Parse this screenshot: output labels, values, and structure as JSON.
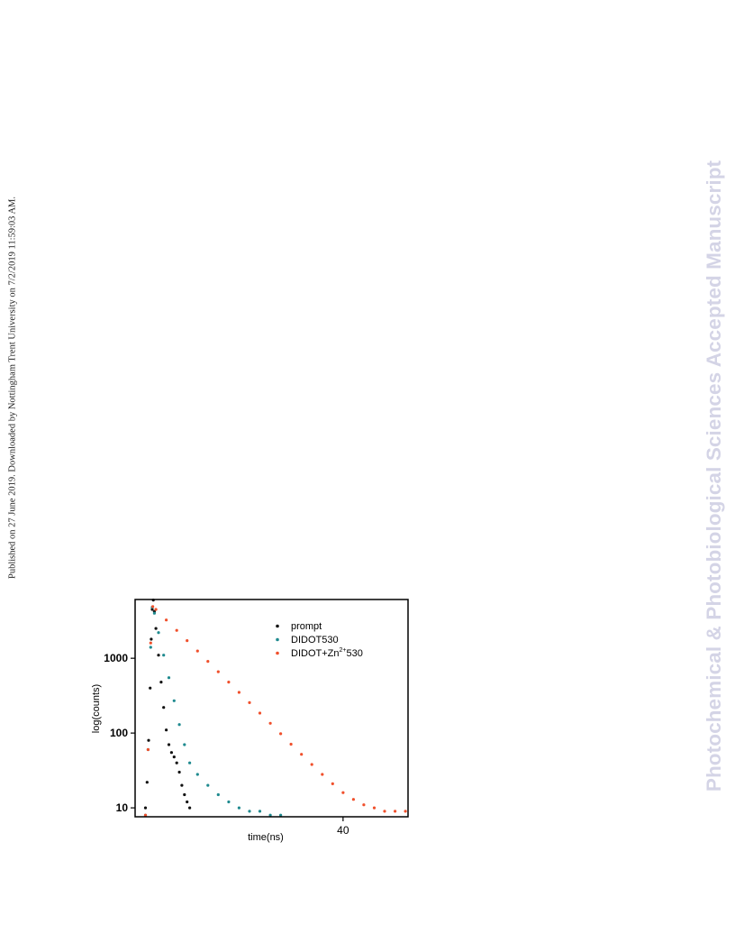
{
  "side_note": "Published on 27 June 2019. Downloaded by Nottingham Trent University on 7/2/2019 11:59:03 AM.",
  "watermark": {
    "text": "Photochemical & Photobiological Sciences Accepted Manuscript",
    "color": "#d4d4e6"
  },
  "chart_data": {
    "type": "scatter",
    "xlabel": "time(ns)",
    "ylabel": "log(counts)",
    "y_scale": "log",
    "xlim": [
      0,
      52.5
    ],
    "ylim": [
      7.6,
      6100
    ],
    "x_ticks": [
      {
        "value": 40,
        "label": "40"
      }
    ],
    "y_ticks": [
      {
        "value": 1000,
        "label": "1000"
      },
      {
        "value": 100,
        "label": "100"
      },
      {
        "value": 10,
        "label": "10"
      }
    ],
    "legend": {
      "position": "top-right",
      "entries": [
        {
          "label": "prompt",
          "color": "#111111"
        },
        {
          "label": "DIDOT530",
          "color": "#1f8a8f"
        },
        {
          "label": "DIDOT+Zn",
          "superscript": "2+",
          "suffix": "530",
          "color": "#f0502c"
        }
      ]
    },
    "series": [
      {
        "name": "prompt",
        "color": "#111111",
        "points": [
          [
            2.0,
            10
          ],
          [
            2.3,
            22
          ],
          [
            2.6,
            80
          ],
          [
            2.9,
            400
          ],
          [
            3.1,
            1800
          ],
          [
            3.3,
            4500
          ],
          [
            3.5,
            6000
          ],
          [
            3.7,
            4200
          ],
          [
            4.0,
            2500
          ],
          [
            4.5,
            1100
          ],
          [
            5.0,
            480
          ],
          [
            5.5,
            220
          ],
          [
            6.0,
            110
          ],
          [
            6.5,
            70
          ],
          [
            7.0,
            55
          ],
          [
            7.5,
            48
          ],
          [
            8.0,
            40
          ],
          [
            8.5,
            30
          ],
          [
            9.0,
            20
          ],
          [
            9.5,
            15
          ],
          [
            10.0,
            12
          ],
          [
            10.5,
            10
          ]
        ]
      },
      {
        "name": "DIDOT530",
        "color": "#1f8a8f",
        "points": [
          [
            2.0,
            8
          ],
          [
            2.5,
            60
          ],
          [
            3.0,
            1400
          ],
          [
            3.3,
            4800
          ],
          [
            3.7,
            4000
          ],
          [
            4.5,
            2200
          ],
          [
            5.5,
            1100
          ],
          [
            6.5,
            550
          ],
          [
            7.5,
            270
          ],
          [
            8.5,
            130
          ],
          [
            9.5,
            70
          ],
          [
            10.5,
            40
          ],
          [
            12,
            28
          ],
          [
            14,
            20
          ],
          [
            16,
            15
          ],
          [
            18,
            12
          ],
          [
            20,
            10
          ],
          [
            22,
            9
          ],
          [
            24,
            9
          ],
          [
            26,
            8
          ],
          [
            28,
            8
          ]
        ]
      },
      {
        "name": "DIDOT+Zn2+530",
        "color": "#f0502c",
        "points": [
          [
            2.0,
            8
          ],
          [
            2.5,
            60
          ],
          [
            3.0,
            1600
          ],
          [
            3.4,
            4900
          ],
          [
            4,
            4500
          ],
          [
            6,
            3250
          ],
          [
            8,
            2360
          ],
          [
            10,
            1720
          ],
          [
            12,
            1250
          ],
          [
            14,
            910
          ],
          [
            16,
            660
          ],
          [
            18,
            480
          ],
          [
            20,
            350
          ],
          [
            22,
            255
          ],
          [
            24,
            185
          ],
          [
            26,
            135
          ],
          [
            28,
            98
          ],
          [
            30,
            71
          ],
          [
            32,
            52
          ],
          [
            34,
            38
          ],
          [
            36,
            28
          ],
          [
            38,
            21
          ],
          [
            40,
            16
          ],
          [
            42,
            13
          ],
          [
            44,
            11
          ],
          [
            46,
            10
          ],
          [
            48,
            9
          ],
          [
            50,
            9
          ],
          [
            52,
            9
          ]
        ]
      }
    ]
  }
}
